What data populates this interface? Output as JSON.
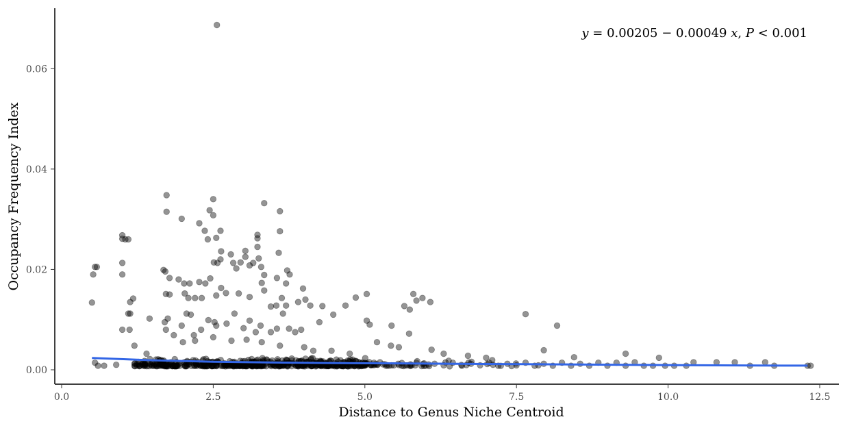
{
  "chart_data": {
    "type": "scatter",
    "title": "",
    "xlabel": "Distance to Genus Niche Centroid",
    "ylabel": "Occupancy Frequency Index",
    "xlim": [
      0,
      12.5
    ],
    "ylim": [
      0,
      0.07
    ],
    "xticks": [
      0,
      2.5,
      5,
      7.5,
      10,
      12.5
    ],
    "xtick_labels": [
      "0.0",
      "2.5",
      "5.0",
      "7.5",
      "10.0",
      "12.5"
    ],
    "yticks": [
      0,
      0.02,
      0.04,
      0.06
    ],
    "ytick_labels": [
      "0.00",
      "0.02",
      "0.04",
      "0.06"
    ],
    "grid": false,
    "legend": "none",
    "annotation": {
      "y_var": "y",
      "equation_mid": " = 0.00205 − 0.00049 ",
      "x_var": "x",
      "sep": ", ",
      "p_var": "P",
      "p_rest": " < 0.001"
    },
    "point_color": "#000000",
    "point_opacity": 0.42,
    "fit_color": "#3366e6",
    "fit_line": [
      [
        0.5,
        0.00235
      ],
      [
        1.5,
        0.0019
      ],
      [
        2.5,
        0.0016
      ],
      [
        3.5,
        0.00145
      ],
      [
        4.5,
        0.00135
      ],
      [
        5.5,
        0.00128
      ],
      [
        6.5,
        0.0012
      ],
      [
        7.5,
        0.00113
      ],
      [
        8.5,
        0.00105
      ],
      [
        9.5,
        0.00097
      ],
      [
        10.5,
        0.0009
      ],
      [
        11.5,
        0.00085
      ],
      [
        12.3,
        0.00083
      ]
    ],
    "points": [
      [
        2.56,
        0.0687
      ],
      [
        1.73,
        0.0348
      ],
      [
        2.5,
        0.034
      ],
      [
        2.44,
        0.0318
      ],
      [
        1.73,
        0.0315
      ],
      [
        3.6,
        0.0316
      ],
      [
        3.34,
        0.0332
      ],
      [
        2.27,
        0.0292
      ],
      [
        1.98,
        0.0301
      ],
      [
        2.5,
        0.0308
      ],
      [
        2.36,
        0.0277
      ],
      [
        2.62,
        0.0277
      ],
      [
        3.6,
        0.0276
      ],
      [
        2.55,
        0.0263
      ],
      [
        2.41,
        0.026
      ],
      [
        3.23,
        0.0269
      ],
      [
        3.23,
        0.0262
      ],
      [
        1.0,
        0.0268
      ],
      [
        1.05,
        0.026
      ],
      [
        1.0,
        0.0261
      ],
      [
        1.1,
        0.026
      ],
      [
        0.55,
        0.0205
      ],
      [
        0.52,
        0.019
      ],
      [
        0.58,
        0.0205
      ],
      [
        1.0,
        0.0213
      ],
      [
        1.0,
        0.019
      ],
      [
        1.68,
        0.0199
      ],
      [
        1.71,
        0.0196
      ],
      [
        1.78,
        0.0183
      ],
      [
        1.93,
        0.018
      ],
      [
        2.02,
        0.0172
      ],
      [
        2.11,
        0.0172
      ],
      [
        2.27,
        0.0175
      ],
      [
        2.37,
        0.0172
      ],
      [
        2.45,
        0.0182
      ],
      [
        2.51,
        0.0214
      ],
      [
        2.57,
        0.0213
      ],
      [
        2.63,
        0.0236
      ],
      [
        2.62,
        0.022
      ],
      [
        2.79,
        0.023
      ],
      [
        2.83,
        0.0213
      ],
      [
        2.88,
        0.0202
      ],
      [
        2.95,
        0.0214
      ],
      [
        3.03,
        0.0237
      ],
      [
        3.03,
        0.0225
      ],
      [
        3.1,
        0.0208
      ],
      [
        3.16,
        0.0213
      ],
      [
        3.23,
        0.0245
      ],
      [
        3.25,
        0.0222
      ],
      [
        3.29,
        0.0205
      ],
      [
        3.34,
        0.0189
      ],
      [
        3.3,
        0.0173
      ],
      [
        3.55,
        0.0183
      ],
      [
        3.58,
        0.0233
      ],
      [
        3.72,
        0.0198
      ],
      [
        3.76,
        0.019
      ],
      [
        3.7,
        0.0172
      ],
      [
        3.98,
        0.0162
      ],
      [
        3.9,
        0.0135
      ],
      [
        4.02,
        0.014
      ],
      [
        4.1,
        0.0128
      ],
      [
        4.3,
        0.0127
      ],
      [
        2.03,
        0.0152
      ],
      [
        2.09,
        0.0143
      ],
      [
        2.2,
        0.0143
      ],
      [
        2.31,
        0.0143
      ],
      [
        2.55,
        0.0148
      ],
      [
        2.63,
        0.0163
      ],
      [
        2.71,
        0.0153
      ],
      [
        2.92,
        0.0152
      ],
      [
        3.1,
        0.0145
      ],
      [
        3.34,
        0.0158
      ],
      [
        3.45,
        0.0126
      ],
      [
        3.54,
        0.0128
      ],
      [
        3.63,
        0.0143
      ],
      [
        3.7,
        0.0128
      ],
      [
        1.18,
        0.0142
      ],
      [
        1.13,
        0.0135
      ],
      [
        0.5,
        0.0134
      ],
      [
        1.72,
        0.0151
      ],
      [
        1.78,
        0.015
      ],
      [
        1.1,
        0.0112
      ],
      [
        1.13,
        0.0112
      ],
      [
        1.12,
        0.008
      ],
      [
        1.0,
        0.008
      ],
      [
        1.45,
        0.0102
      ],
      [
        1.7,
        0.0095
      ],
      [
        1.72,
        0.008
      ],
      [
        1.75,
        0.0102
      ],
      [
        1.85,
        0.0069
      ],
      [
        1.98,
        0.0088
      ],
      [
        2.06,
        0.0112
      ],
      [
        2.13,
        0.011
      ],
      [
        2.18,
        0.0069
      ],
      [
        2.3,
        0.008
      ],
      [
        2.42,
        0.0099
      ],
      [
        2.52,
        0.0095
      ],
      [
        2.55,
        0.0088
      ],
      [
        2.72,
        0.0092
      ],
      [
        2.85,
        0.0112
      ],
      [
        3.0,
        0.0083
      ],
      [
        3.1,
        0.0098
      ],
      [
        3.2,
        0.0075
      ],
      [
        3.28,
        0.0088
      ],
      [
        3.45,
        0.0075
      ],
      [
        3.55,
        0.0082
      ],
      [
        3.65,
        0.0112
      ],
      [
        3.75,
        0.0082
      ],
      [
        3.85,
        0.0075
      ],
      [
        3.95,
        0.008
      ],
      [
        4.25,
        0.0095
      ],
      [
        4.48,
        0.011
      ],
      [
        4.68,
        0.0128
      ],
      [
        4.85,
        0.0144
      ],
      [
        5.03,
        0.0151
      ],
      [
        5.03,
        0.0098
      ],
      [
        5.08,
        0.009
      ],
      [
        5.44,
        0.0088
      ],
      [
        5.65,
        0.0127
      ],
      [
        5.74,
        0.012
      ],
      [
        5.8,
        0.0151
      ],
      [
        5.85,
        0.0138
      ],
      [
        5.95,
        0.0143
      ],
      [
        6.08,
        0.0135
      ],
      [
        5.73,
        0.0072
      ],
      [
        5.2,
        0.0055
      ],
      [
        5.43,
        0.0048
      ],
      [
        5.56,
        0.0045
      ],
      [
        7.65,
        0.0111
      ],
      [
        8.17,
        0.0088
      ],
      [
        7.95,
        0.0039
      ],
      [
        9.3,
        0.0032
      ],
      [
        9.85,
        0.0024
      ],
      [
        1.2,
        0.0048
      ],
      [
        1.4,
        0.0032
      ],
      [
        2.0,
        0.0055
      ],
      [
        2.2,
        0.0058
      ],
      [
        2.5,
        0.0065
      ],
      [
        2.8,
        0.0058
      ],
      [
        3.05,
        0.006
      ],
      [
        3.3,
        0.0055
      ],
      [
        3.6,
        0.0048
      ],
      [
        4.0,
        0.0045
      ],
      [
        4.15,
        0.0038
      ],
      [
        4.45,
        0.0038
      ],
      [
        4.75,
        0.0032
      ],
      [
        6.1,
        0.004
      ],
      [
        6.3,
        0.0032
      ],
      [
        6.7,
        0.0028
      ],
      [
        7.0,
        0.0024
      ],
      [
        8.45,
        0.0025
      ],
      [
        0.55,
        0.0014
      ],
      [
        0.6,
        0.0008
      ],
      [
        0.7,
        0.0008
      ],
      [
        0.9,
        0.001
      ],
      [
        1.2,
        0.0012
      ],
      [
        1.35,
        0.0008
      ],
      [
        1.5,
        0.0015
      ],
      [
        1.65,
        0.0008
      ],
      [
        1.8,
        0.0015
      ],
      [
        1.95,
        0.0008
      ],
      [
        2.1,
        0.0012
      ],
      [
        2.25,
        0.0016
      ],
      [
        2.4,
        0.0008
      ],
      [
        2.55,
        0.0014
      ],
      [
        2.7,
        0.0009
      ],
      [
        2.85,
        0.0016
      ],
      [
        3.0,
        0.0008
      ],
      [
        3.15,
        0.0014
      ],
      [
        3.3,
        0.0009
      ],
      [
        3.45,
        0.0016
      ],
      [
        3.6,
        0.0008
      ],
      [
        3.75,
        0.0014
      ],
      [
        3.9,
        0.0009
      ],
      [
        4.05,
        0.0016
      ],
      [
        4.2,
        0.0008
      ],
      [
        4.35,
        0.0013
      ],
      [
        4.5,
        0.0009
      ],
      [
        4.65,
        0.0015
      ],
      [
        4.8,
        0.0008
      ],
      [
        4.95,
        0.0013
      ],
      [
        5.1,
        0.0009
      ],
      [
        5.25,
        0.0015
      ],
      [
        5.4,
        0.0008
      ],
      [
        5.55,
        0.0012
      ],
      [
        5.7,
        0.0009
      ],
      [
        5.85,
        0.0014
      ],
      [
        6.0,
        0.0008
      ],
      [
        6.15,
        0.0012
      ],
      [
        6.3,
        0.0009
      ],
      [
        6.45,
        0.0014
      ],
      [
        6.6,
        0.0008
      ],
      [
        6.75,
        0.0012
      ],
      [
        6.9,
        0.0009
      ],
      [
        7.05,
        0.0014
      ],
      [
        7.2,
        0.0008
      ],
      [
        7.35,
        0.0012
      ],
      [
        7.5,
        0.0009
      ],
      [
        7.65,
        0.0014
      ],
      [
        7.8,
        0.0008
      ],
      [
        7.95,
        0.0012
      ],
      [
        8.1,
        0.0008
      ],
      [
        8.25,
        0.0014
      ],
      [
        8.4,
        0.0008
      ],
      [
        8.55,
        0.0012
      ],
      [
        8.7,
        0.0008
      ],
      [
        8.85,
        0.0014
      ],
      [
        9.0,
        0.0008
      ],
      [
        9.15,
        0.0014
      ],
      [
        9.3,
        0.0008
      ],
      [
        9.45,
        0.0015
      ],
      [
        9.6,
        0.0008
      ],
      [
        9.75,
        0.0008
      ],
      [
        9.95,
        0.0008
      ],
      [
        10.1,
        0.0008
      ],
      [
        10.3,
        0.0008
      ],
      [
        10.42,
        0.0015
      ],
      [
        10.8,
        0.0015
      ],
      [
        11.1,
        0.0015
      ],
      [
        11.35,
        0.0008
      ],
      [
        11.6,
        0.0015
      ],
      [
        11.75,
        0.0008
      ],
      [
        12.3,
        0.0008
      ],
      [
        12.35,
        0.0008
      ]
    ]
  }
}
